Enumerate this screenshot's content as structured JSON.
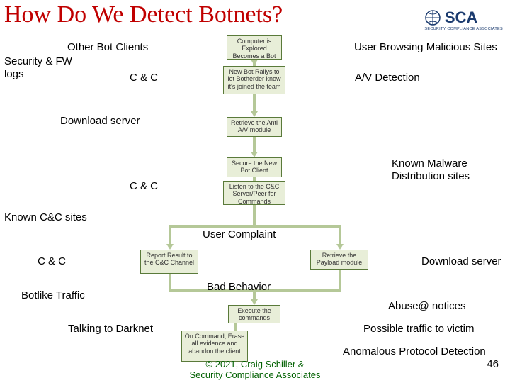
{
  "title": "How Do We Detect Botnets?",
  "logo": {
    "text": "SCA",
    "sub": "SECURITY COMPLIANCE ASSOCIATES",
    "color": "#1a3a6e"
  },
  "labels": {
    "other_bot_clients": "Other Bot Clients",
    "user_browsing": "User Browsing Malicious Sites",
    "security_fw": "Security & FW logs",
    "cc1": "C & C",
    "av_detection": "A/V Detection",
    "download_server1": "Download server",
    "cc2": "C & C",
    "known_malware": "Known Malware Distribution sites",
    "known_cc": "Known C&C sites",
    "user_complaint": "User Complaint",
    "cc3": "C & C",
    "download_server2": "Download server",
    "botlike": "Botlike Traffic",
    "bad_behavior": "Bad Behavior",
    "abuse": "Abuse@ notices",
    "talking_darknet": "Talking to Darknet",
    "possible_traffic": "Possible traffic to victim",
    "anomalous": "Anomalous Protocol Detection"
  },
  "flow": {
    "b1": "Computer is Explored Becomes a Bot",
    "b2": "New Bot Rallys to let Botherder know it's joined the team",
    "b3": "Retrieve the Anti A/V module",
    "b4": "Secure the New Bot Client",
    "b5": "Listen to the C&C Server/Peer for Commands",
    "b6": "Report Result to the C&C Channel",
    "b7": "Retrieve the Payload module",
    "b8": "Execute the commands",
    "b9": "On Command, Erase all evidence and abandon the client"
  },
  "credit": "© 2021, Craig Schiller & Security Compliance Associates",
  "page_num": "46",
  "style": {
    "title_color": "#c00000",
    "box_bg": "#e8eed8",
    "box_border": "#5a7a3a",
    "arrow_color": "#b5c898",
    "credit_color": "#006000",
    "title_fontsize": 34,
    "label_fontsize": 15,
    "flow_fontsize": 9
  }
}
